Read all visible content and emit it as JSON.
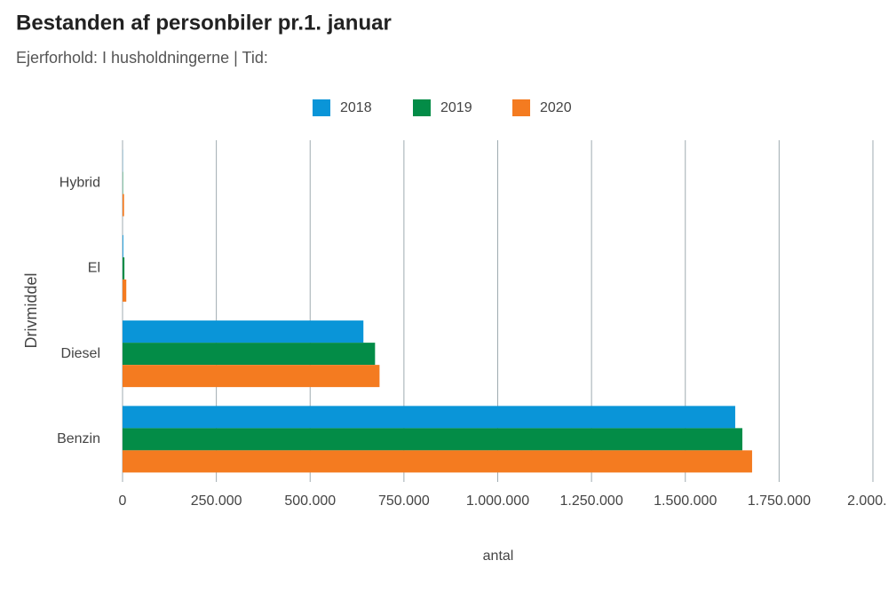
{
  "chart_data": {
    "type": "hbar",
    "title": "Bestanden af personbiler pr.1. januar",
    "subtitle": "Ejerforhold: I husholdningerne | Tid:",
    "ylabel": "Drivmiddel",
    "xlabel": "antal",
    "categories": [
      "Hybrid",
      "El",
      "Diesel",
      "Benzin"
    ],
    "series": [
      {
        "name": "2018",
        "color": "#0a95d8",
        "values": [
          500,
          2000,
          642000,
          1633000
        ]
      },
      {
        "name": "2019",
        "color": "#038c47",
        "values": [
          1000,
          5000,
          673000,
          1652000
        ]
      },
      {
        "name": "2020",
        "color": "#f47b20",
        "values": [
          4000,
          10000,
          685000,
          1678000
        ]
      }
    ],
    "xlim": [
      0,
      2000000
    ],
    "xticks": [
      0,
      {
        "value": 250000,
        "label": "250.000"
      },
      {
        "value": 500000,
        "label": "500.000"
      },
      {
        "value": 750000,
        "label": "750.000"
      },
      {
        "value": 1000000,
        "label": "1.000.000"
      },
      {
        "value": 1250000,
        "label": "1.250.000"
      },
      {
        "value": 1500000,
        "label": "1.500.000"
      },
      {
        "value": 1750000,
        "label": "1.750.000"
      },
      {
        "value": 2000000,
        "label": "2.000...."
      }
    ],
    "grid": true,
    "legend": "top"
  }
}
